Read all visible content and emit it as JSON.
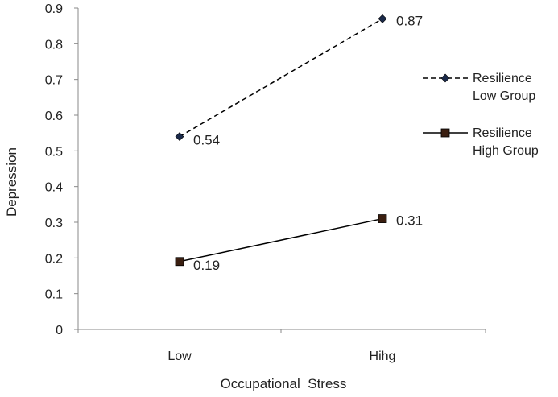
{
  "chart_data": {
    "type": "line",
    "title": "",
    "xlabel": "Occupational  Stress",
    "ylabel": "Depression",
    "categories": [
      "Low",
      "Hihg"
    ],
    "ylim": [
      0,
      0.9
    ],
    "yticks": [
      "0",
      "0.1",
      "0.2",
      "0.3",
      "0.4",
      "0.5",
      "0.6",
      "0.7",
      "0.8",
      "0.9"
    ],
    "grid": false,
    "legend_position": "right",
    "series": [
      {
        "name": "Resilience Low Group",
        "legend_lines": [
          "Resilience",
          "Low Group"
        ],
        "values": [
          0.54,
          0.87
        ],
        "labels": [
          "0.54",
          "0.87"
        ],
        "line_style": "dashed",
        "marker": "diamond",
        "color": "#1b2a4a"
      },
      {
        "name": "Resilience High Group",
        "legend_lines": [
          "Resilience",
          "High Group"
        ],
        "values": [
          0.19,
          0.31
        ],
        "labels": [
          "0.19",
          "0.31"
        ],
        "line_style": "solid",
        "marker": "square",
        "color": "#3a1e10"
      }
    ]
  }
}
